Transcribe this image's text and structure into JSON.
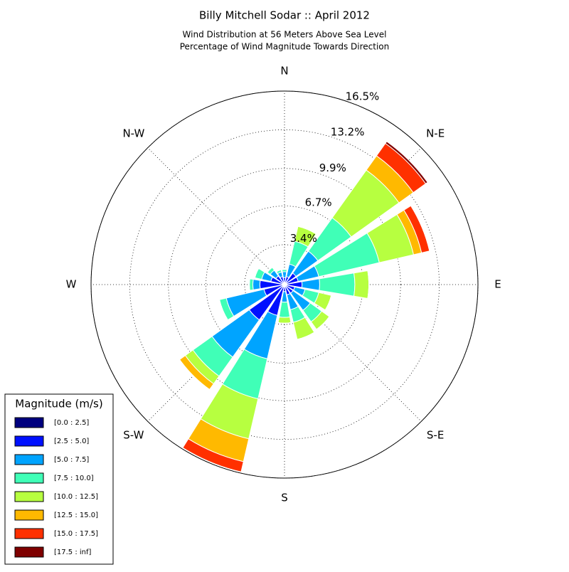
{
  "chart_data": {
    "type": "windrose",
    "title": "Billy Mitchell Sodar :: April 2012",
    "subtitle": [
      "Wind Distribution at 56 Meters Above Sea Level",
      "Percentage of Wind Magnitude Towards Direction"
    ],
    "direction_labels": [
      "N",
      "N-E",
      "E",
      "S-E",
      "S",
      "S-W",
      "W",
      "N-W"
    ],
    "ylim": [
      0,
      16.5
    ],
    "yticks": [
      {
        "value": 3.4,
        "label": "3.4%"
      },
      {
        "value": 6.7,
        "label": "6.7%"
      },
      {
        "value": 9.9,
        "label": "9.9%"
      },
      {
        "value": 13.2,
        "label": "13.2%"
      },
      {
        "value": 16.5,
        "label": "16.5%"
      }
    ],
    "grid": true,
    "legend_title": "Magnitude (m/s)",
    "legend_position": "lower-left",
    "series": [
      {
        "name": "[0.0 : 2.5]",
        "color": "#00007f",
        "values": [
          0.1,
          0.1,
          0.2,
          0.2,
          0.2,
          0.1,
          0.1,
          0.1,
          0.1,
          0.2,
          0.2,
          0.1,
          0.1,
          0.1,
          0.1,
          0.1
        ]
      },
      {
        "name": "[2.5 : 5.0]",
        "color": "#0010ff",
        "values": [
          0.5,
          0.6,
          1.0,
          1.0,
          1.3,
          0.8,
          0.8,
          0.8,
          0.5,
          2.5,
          3.5,
          1.7,
          2.0,
          1.1,
          0.8,
          0.6
        ]
      },
      {
        "name": "[5.0 : 7.5]",
        "color": "#00a4ff",
        "values": [
          0.5,
          1.1,
          2.3,
          1.8,
          1.5,
          0.9,
          1.8,
          1.3,
          0.9,
          3.8,
          3.9,
          3.3,
          0.6,
          0.8,
          0.6,
          0.4
        ]
      },
      {
        "name": "[7.5 : 10.0]",
        "color": "#40ffb7",
        "values": [
          0.2,
          2.0,
          3.5,
          5.3,
          3.0,
          1.2,
          1.2,
          1.1,
          1.3,
          3.5,
          2.0,
          0.6,
          0.3,
          0.6,
          0.3,
          0.2
        ]
      },
      {
        "name": "[10.0 : 12.5]",
        "color": "#b7ff40",
        "values": [
          0,
          1.3,
          5.0,
          3.0,
          1.2,
          1.1,
          0.8,
          1.5,
          0.5,
          3.5,
          0.8,
          0,
          0,
          0,
          0,
          0
        ]
      },
      {
        "name": "[12.5 : 15.0]",
        "color": "#ffb900",
        "values": [
          0,
          0,
          1.5,
          0.7,
          0,
          0,
          0,
          0,
          0,
          2.0,
          0.6,
          0,
          0,
          0,
          0,
          0
        ]
      },
      {
        "name": "[15.0 : 17.5]",
        "color": "#ff3000",
        "values": [
          0,
          0,
          1.3,
          0.7,
          0,
          0,
          0,
          0,
          0,
          0.9,
          0,
          0,
          0,
          0,
          0,
          0
        ]
      },
      {
        "name": "[17.5 : inf]",
        "color": "#7f0000",
        "values": [
          0,
          0,
          0.2,
          0,
          0,
          0,
          0,
          0,
          0,
          0,
          0,
          0,
          0,
          0,
          0,
          0
        ]
      }
    ]
  }
}
